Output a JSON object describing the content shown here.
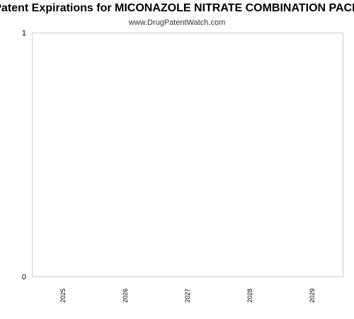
{
  "chart_data": {
    "type": "bar",
    "title": "Patent Expirations for MICONAZOLE NITRATE COMBINATION PACK",
    "subtitle": "www.DrugPatentWatch.com",
    "xlabel": "",
    "ylabel": "",
    "categories": [
      "2025",
      "2026",
      "2027",
      "2028",
      "2029"
    ],
    "values": [
      0,
      0,
      0,
      0,
      0
    ],
    "ylim": [
      0,
      1
    ],
    "y_ticks": [
      "0",
      "1"
    ],
    "grid": false,
    "legend": "none",
    "colors": {
      "frame": "#cccccc",
      "text": "#000000",
      "bar": "#5b9bd5"
    }
  }
}
